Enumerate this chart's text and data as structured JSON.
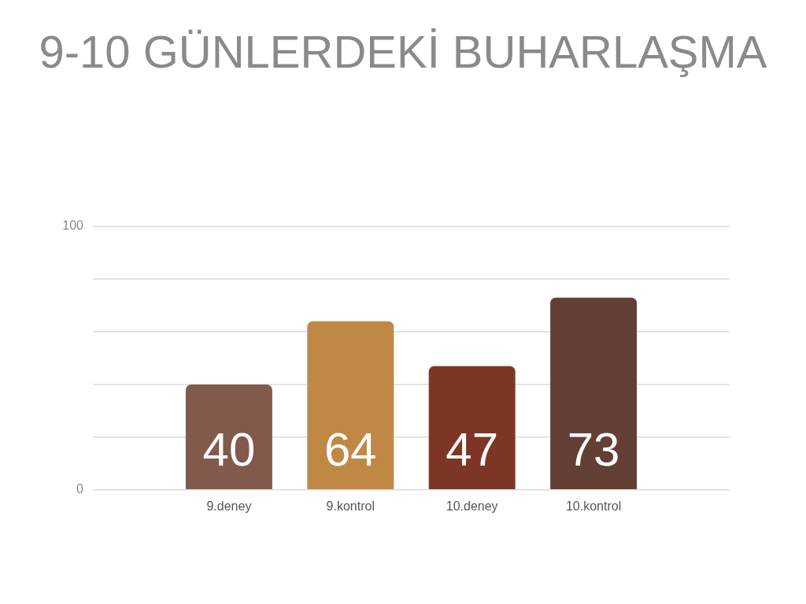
{
  "chart_data": {
    "type": "bar",
    "title": "9-10 GÜNLERDEKİ BUHARLAŞMA",
    "categories": [
      "9.deney",
      "9.kontrol",
      "10.deney",
      "10.kontrol"
    ],
    "values": [
      40,
      64,
      47,
      73
    ],
    "colors": [
      "#825a4c",
      "#c08845",
      "#7d3626",
      "#633f35"
    ],
    "ylim": [
      0,
      100
    ],
    "yticks": [
      0,
      {
        "value": 20,
        "label": null
      },
      {
        "value": 40,
        "label": null
      },
      {
        "value": 60,
        "label": null
      },
      {
        "value": 80,
        "label": null
      },
      100
    ],
    "grid": "y",
    "data_labels": true
  }
}
